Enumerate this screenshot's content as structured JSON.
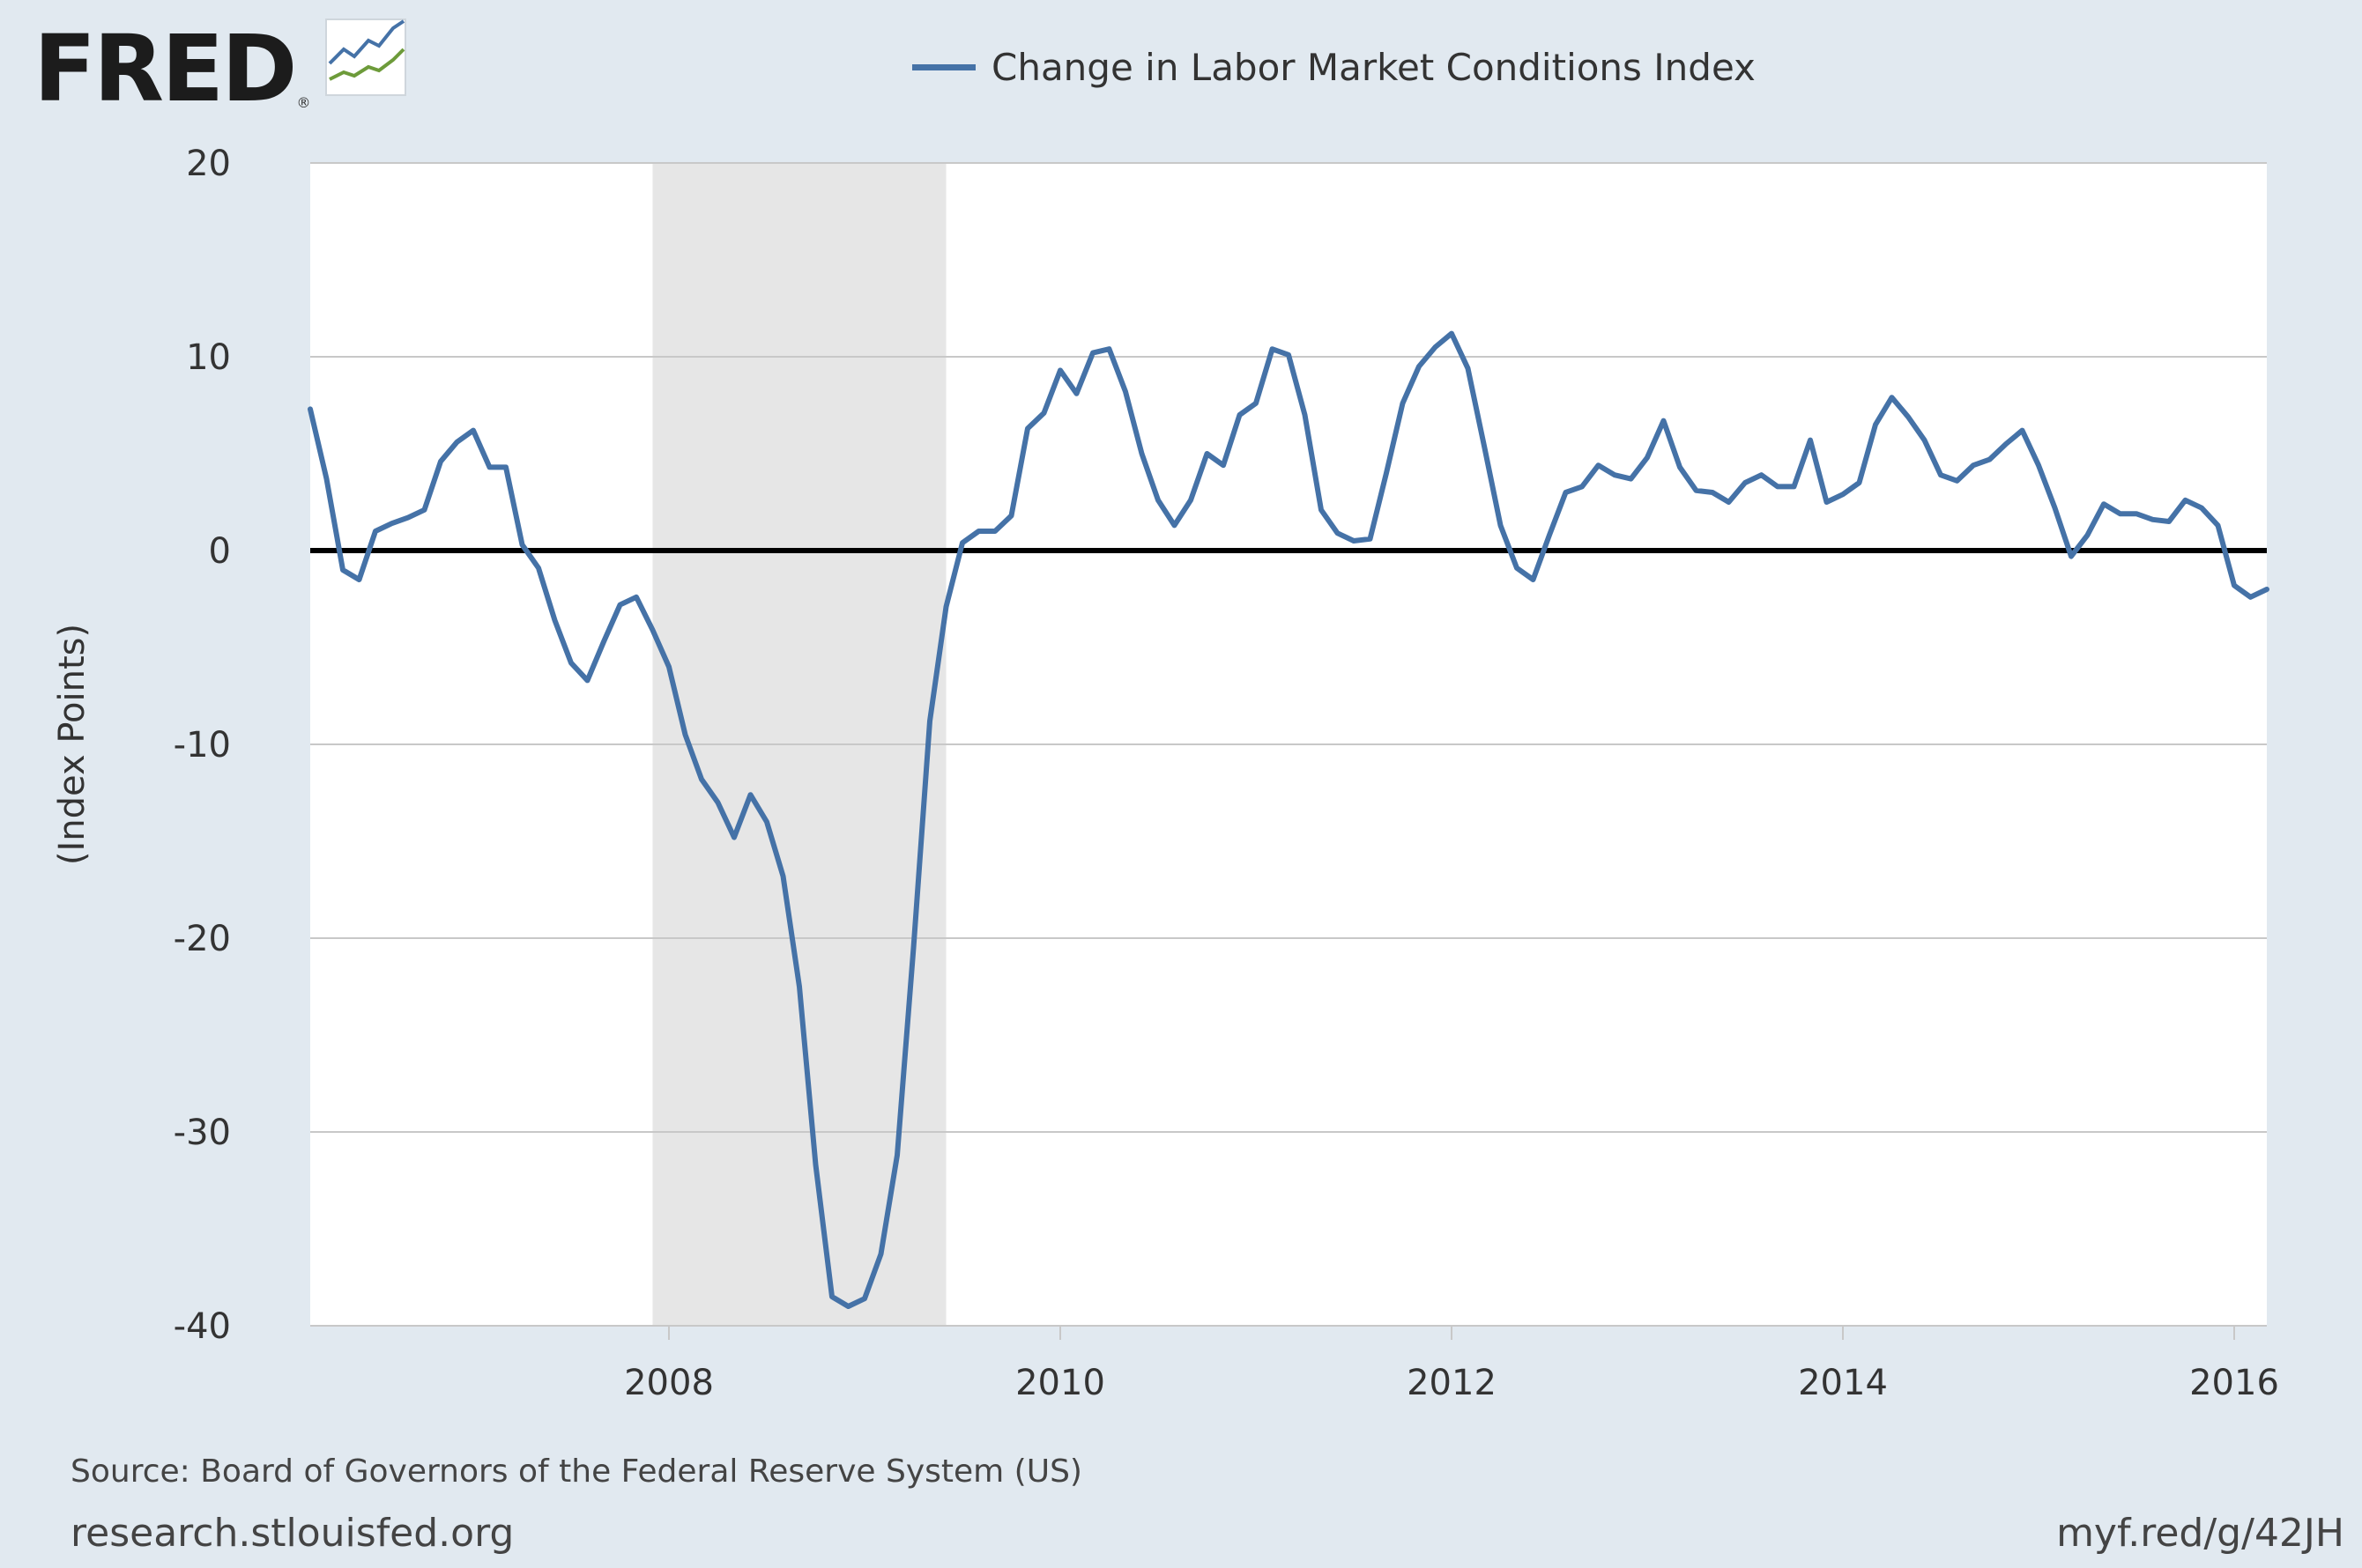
{
  "header": {
    "logo_text": "FRED",
    "logo_reg": "®",
    "logo_icon": "fred-trend-icon"
  },
  "colors": {
    "background": "#e1e9f0",
    "plot_background": "#ffffff",
    "series": "#4572a7",
    "recession_band": "#e6e6e6",
    "grid": "#c8c8c8",
    "zero_line": "#000000"
  },
  "footer": {
    "source": "Source: Board of Governors of the Federal Reserve System (US)",
    "site": "research.stlouisfed.org",
    "shortlink": "myf.red/g/42JH"
  },
  "chart_data": {
    "type": "line",
    "title": "",
    "ylabel": "(Index Points)",
    "xlabel": "",
    "ylim": [
      -40,
      20
    ],
    "xlim": [
      "2006-03",
      "2016-03"
    ],
    "yticks": [
      "20",
      "10",
      "0",
      "-10",
      "-20",
      "-30",
      "-40"
    ],
    "xticks": [
      "2008",
      "2010",
      "2012",
      "2014",
      "2016"
    ],
    "grid": true,
    "legend_position": "top-center",
    "zero_line": true,
    "recession_shading": [
      {
        "start": "2007-12",
        "end": "2009-06"
      }
    ],
    "series": [
      {
        "name": "Change in Labor Market Conditions Index",
        "x": [
          "2006-03",
          "2006-04",
          "2006-05",
          "2006-06",
          "2006-07",
          "2006-08",
          "2006-09",
          "2006-10",
          "2006-11",
          "2006-12",
          "2007-01",
          "2007-02",
          "2007-03",
          "2007-04",
          "2007-05",
          "2007-06",
          "2007-07",
          "2007-08",
          "2007-09",
          "2007-10",
          "2007-11",
          "2007-12",
          "2008-01",
          "2008-02",
          "2008-03",
          "2008-04",
          "2008-05",
          "2008-06",
          "2008-07",
          "2008-08",
          "2008-09",
          "2008-10",
          "2008-11",
          "2008-12",
          "2009-01",
          "2009-02",
          "2009-03",
          "2009-04",
          "2009-05",
          "2009-06",
          "2009-07",
          "2009-08",
          "2009-09",
          "2009-10",
          "2009-11",
          "2009-12",
          "2010-01",
          "2010-02",
          "2010-03",
          "2010-04",
          "2010-05",
          "2010-06",
          "2010-07",
          "2010-08",
          "2010-09",
          "2010-10",
          "2010-11",
          "2010-12",
          "2011-01",
          "2011-02",
          "2011-03",
          "2011-04",
          "2011-05",
          "2011-06",
          "2011-07",
          "2011-08",
          "2011-09",
          "2011-10",
          "2011-11",
          "2011-12",
          "2012-01",
          "2012-02",
          "2012-03",
          "2012-04",
          "2012-05",
          "2012-06",
          "2012-07",
          "2012-08",
          "2012-09",
          "2012-10",
          "2012-11",
          "2012-12",
          "2013-01",
          "2013-02",
          "2013-03",
          "2013-04",
          "2013-05",
          "2013-06",
          "2013-07",
          "2013-08",
          "2013-09",
          "2013-10",
          "2013-11",
          "2013-12",
          "2014-01",
          "2014-02",
          "2014-03",
          "2014-04",
          "2014-05",
          "2014-06",
          "2014-07",
          "2014-08",
          "2014-09",
          "2014-10",
          "2014-11",
          "2014-12",
          "2015-01",
          "2015-02",
          "2015-03",
          "2015-04",
          "2015-05",
          "2015-06",
          "2015-07",
          "2015-08",
          "2015-09",
          "2015-10",
          "2015-11",
          "2015-12",
          "2016-01",
          "2016-02",
          "2016-03"
        ],
        "values": [
          7.3,
          3.7,
          -1.0,
          -1.5,
          1.0,
          1.4,
          1.7,
          2.1,
          4.6,
          5.6,
          6.2,
          4.3,
          4.3,
          0.3,
          -0.9,
          -3.6,
          -5.8,
          -6.7,
          -4.7,
          -2.8,
          -2.4,
          -4.1,
          -6.0,
          -9.5,
          -11.8,
          -13.0,
          -14.8,
          -12.6,
          -14.0,
          -16.8,
          -22.5,
          -31.7,
          -38.5,
          -39.0,
          -38.6,
          -36.3,
          -31.2,
          -20.5,
          -8.8,
          -2.9,
          0.4,
          1.0,
          1.0,
          1.8,
          6.3,
          7.1,
          9.3,
          8.1,
          10.2,
          10.4,
          8.2,
          5.0,
          2.6,
          1.3,
          2.6,
          5.0,
          4.4,
          7.0,
          7.6,
          10.4,
          10.1,
          7.0,
          2.1,
          0.9,
          0.5,
          0.6,
          4.0,
          7.6,
          9.5,
          10.5,
          11.2,
          9.4,
          5.4,
          1.3,
          -0.9,
          -1.5,
          0.8,
          3.0,
          3.3,
          4.4,
          3.9,
          3.7,
          4.8,
          6.7,
          4.3,
          3.1,
          3.0,
          2.5,
          3.5,
          3.9,
          3.3,
          3.3,
          5.7,
          2.5,
          2.9,
          3.5,
          6.5,
          7.9,
          6.9,
          5.7,
          3.9,
          3.6,
          4.4,
          4.7,
          5.5,
          6.2,
          4.4,
          2.2,
          -0.3,
          0.8,
          2.4,
          1.9,
          1.9,
          1.6,
          1.5,
          2.6,
          2.2,
          1.3,
          -1.8,
          -2.4,
          -2.0
        ]
      }
    ]
  }
}
